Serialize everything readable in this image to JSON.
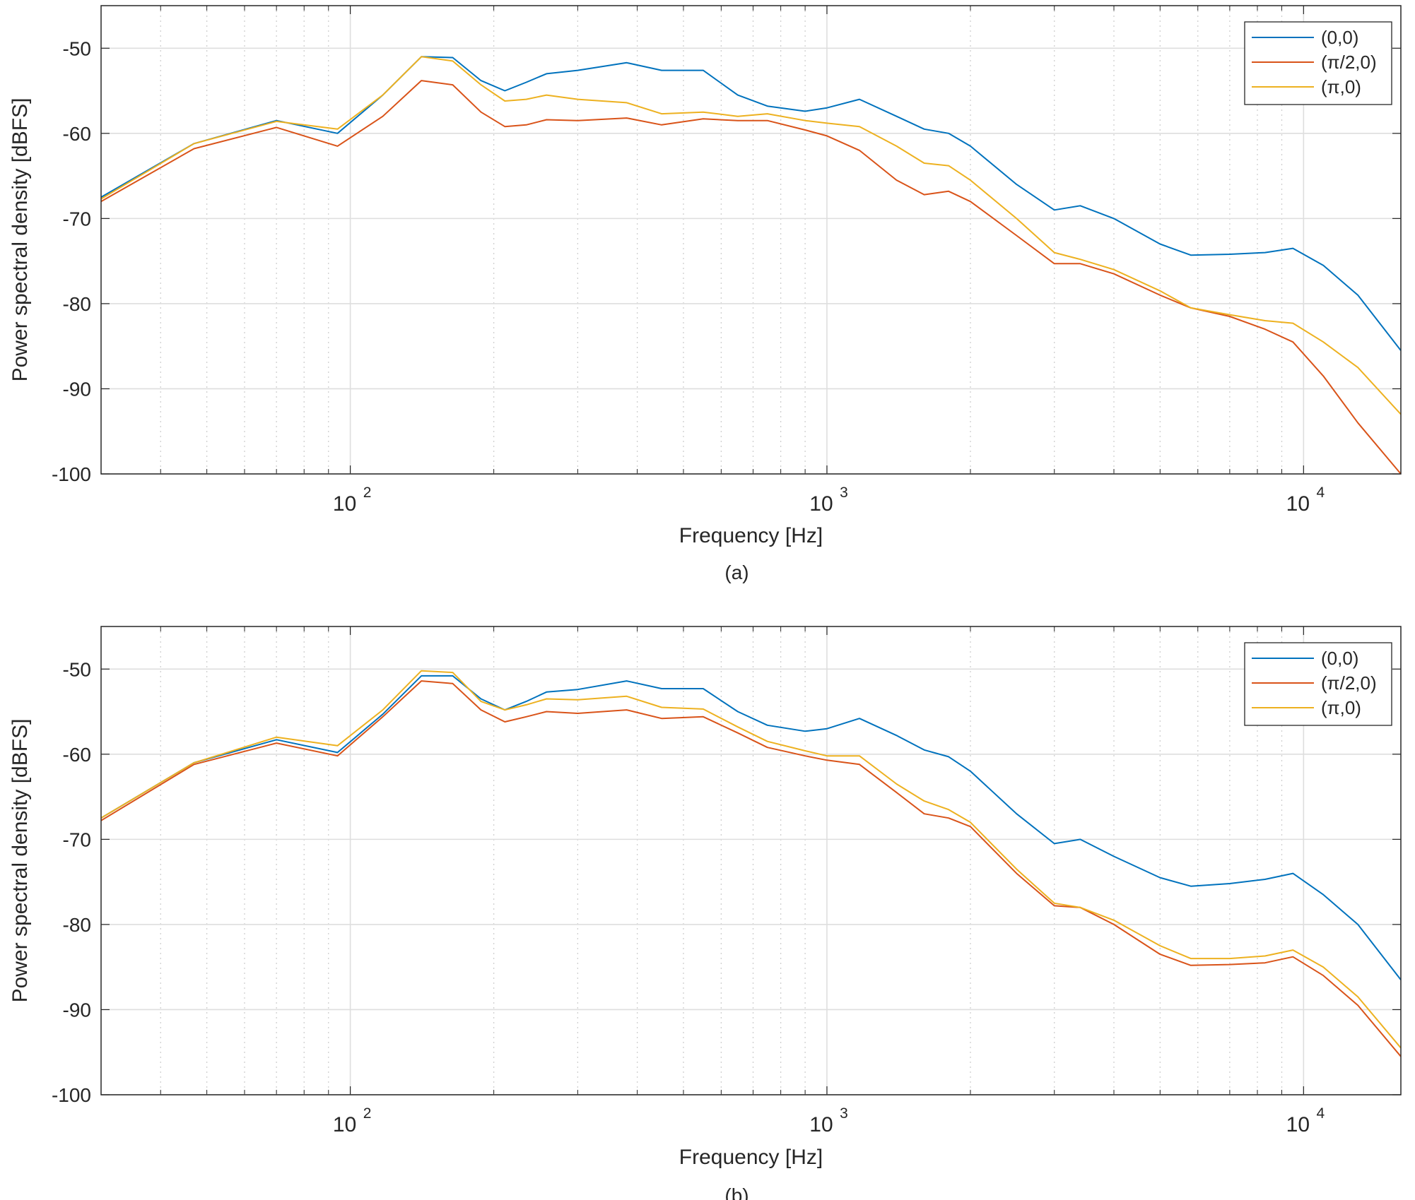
{
  "chart_data": [
    {
      "type": "line",
      "caption": "(a)",
      "xlabel": "Frequency [Hz]",
      "ylabel": "Power spectral density [dBFS]",
      "xscale": "log",
      "xlim": [
        30,
        16000
      ],
      "ylim": [
        -100,
        -45
      ],
      "grid": true,
      "legend_position": "top-right",
      "x_ticks": [
        100,
        1000,
        10000
      ],
      "x_tick_labels": [
        {
          "base": "10",
          "exp": "2"
        },
        {
          "base": "10",
          "exp": "3"
        },
        {
          "base": "10",
          "exp": "4"
        }
      ],
      "y_ticks": [
        -100,
        -90,
        -80,
        -70,
        -60,
        -50
      ],
      "y_tick_labels": [
        "-100",
        "-90",
        "-80",
        "-70",
        "-60",
        "-50"
      ],
      "x": [
        30,
        47,
        70,
        94,
        117,
        141,
        164,
        188,
        211,
        234,
        258,
        300,
        380,
        450,
        550,
        650,
        750,
        900,
        1000,
        1170,
        1400,
        1600,
        1800,
        2000,
        2500,
        3000,
        3400,
        4000,
        5000,
        5800,
        7000,
        8300,
        9500,
        11000,
        13000,
        16000
      ],
      "series": [
        {
          "name": "(0,0)",
          "color": "#0072BD",
          "values": [
            -67.5,
            -61.2,
            -58.5,
            -60.0,
            -55.5,
            -51.0,
            -51.1,
            -53.8,
            -55.0,
            -54.0,
            -53.0,
            -52.6,
            -51.7,
            -52.6,
            -52.6,
            -55.5,
            -56.8,
            -57.4,
            -57.0,
            -56.0,
            -58.0,
            -59.5,
            -60.0,
            -61.5,
            -66.0,
            -69.0,
            -68.5,
            -70.0,
            -73.0,
            -74.3,
            -74.2,
            -74.0,
            -73.5,
            -75.5,
            -79.0,
            -85.5
          ]
        },
        {
          "name": "(π/2,0)",
          "color": "#D95319",
          "values": [
            -68.0,
            -61.8,
            -59.3,
            -61.5,
            -58.0,
            -53.8,
            -54.3,
            -57.5,
            -59.2,
            -59.0,
            -58.4,
            -58.5,
            -58.2,
            -59.0,
            -58.3,
            -58.5,
            -58.5,
            -59.6,
            -60.3,
            -62.0,
            -65.5,
            -67.2,
            -66.8,
            -68.0,
            -72.0,
            -75.3,
            -75.3,
            -76.5,
            -79.0,
            -80.5,
            -81.5,
            -83.0,
            -84.5,
            -88.5,
            -94.0,
            -100.0
          ]
        },
        {
          "name": "(π,0)",
          "color": "#EDB120",
          "values": [
            -67.7,
            -61.2,
            -58.6,
            -59.5,
            -55.5,
            -51.0,
            -51.5,
            -54.3,
            -56.2,
            -56.0,
            -55.5,
            -56.0,
            -56.4,
            -57.7,
            -57.5,
            -58.0,
            -57.7,
            -58.5,
            -58.8,
            -59.2,
            -61.5,
            -63.5,
            -63.8,
            -65.5,
            -70.0,
            -74.0,
            -74.8,
            -76.0,
            -78.5,
            -80.5,
            -81.3,
            -82.0,
            -82.3,
            -84.5,
            -87.5,
            -93.0
          ]
        }
      ]
    },
    {
      "type": "line",
      "caption": "(b)",
      "xlabel": "Frequency [Hz]",
      "ylabel": "Power spectral density [dBFS]",
      "xscale": "log",
      "xlim": [
        30,
        16000
      ],
      "ylim": [
        -100,
        -45
      ],
      "grid": true,
      "legend_position": "top-right",
      "x_ticks": [
        100,
        1000,
        10000
      ],
      "x_tick_labels": [
        {
          "base": "10",
          "exp": "2"
        },
        {
          "base": "10",
          "exp": "3"
        },
        {
          "base": "10",
          "exp": "4"
        }
      ],
      "y_ticks": [
        -100,
        -90,
        -80,
        -70,
        -60,
        -50
      ],
      "y_tick_labels": [
        "-100",
        "-90",
        "-80",
        "-70",
        "-60",
        "-50"
      ],
      "x": [
        30,
        47,
        70,
        94,
        117,
        141,
        164,
        188,
        211,
        234,
        258,
        300,
        380,
        450,
        550,
        650,
        750,
        900,
        1000,
        1170,
        1400,
        1600,
        1800,
        2000,
        2500,
        3000,
        3400,
        4000,
        5000,
        5800,
        7000,
        8300,
        9500,
        11000,
        13000,
        16000
      ],
      "series": [
        {
          "name": "(0,0)",
          "color": "#0072BD",
          "values": [
            -67.5,
            -61.0,
            -58.3,
            -59.8,
            -55.3,
            -50.8,
            -50.8,
            -53.5,
            -54.8,
            -53.8,
            -52.7,
            -52.4,
            -51.4,
            -52.3,
            -52.3,
            -55.0,
            -56.6,
            -57.3,
            -57.0,
            -55.8,
            -57.8,
            -59.5,
            -60.3,
            -62.0,
            -67.0,
            -70.5,
            -70.0,
            -72.0,
            -74.5,
            -75.5,
            -75.2,
            -74.7,
            -74.0,
            -76.5,
            -80.0,
            -86.5
          ]
        },
        {
          "name": "(π/2,0)",
          "color": "#D95319",
          "values": [
            -67.8,
            -61.2,
            -58.7,
            -60.2,
            -55.6,
            -51.4,
            -51.7,
            -54.8,
            -56.2,
            -55.6,
            -55.0,
            -55.2,
            -54.8,
            -55.8,
            -55.6,
            -57.5,
            -59.2,
            -60.2,
            -60.7,
            -61.2,
            -64.5,
            -67.0,
            -67.5,
            -68.5,
            -74.0,
            -77.8,
            -78.0,
            -80.0,
            -83.5,
            -84.8,
            -84.7,
            -84.5,
            -83.8,
            -86.0,
            -89.5,
            -95.5
          ]
        },
        {
          "name": "(π,0)",
          "color": "#EDB120",
          "values": [
            -67.5,
            -61.0,
            -58.0,
            -59.0,
            -54.8,
            -50.2,
            -50.4,
            -53.8,
            -54.8,
            -54.2,
            -53.5,
            -53.6,
            -53.2,
            -54.5,
            -54.7,
            -56.8,
            -58.5,
            -59.6,
            -60.2,
            -60.2,
            -63.5,
            -65.5,
            -66.5,
            -68.0,
            -73.5,
            -77.5,
            -78.0,
            -79.5,
            -82.5,
            -84.0,
            -84.0,
            -83.7,
            -83.0,
            -85.0,
            -88.5,
            -94.5
          ]
        }
      ]
    }
  ]
}
